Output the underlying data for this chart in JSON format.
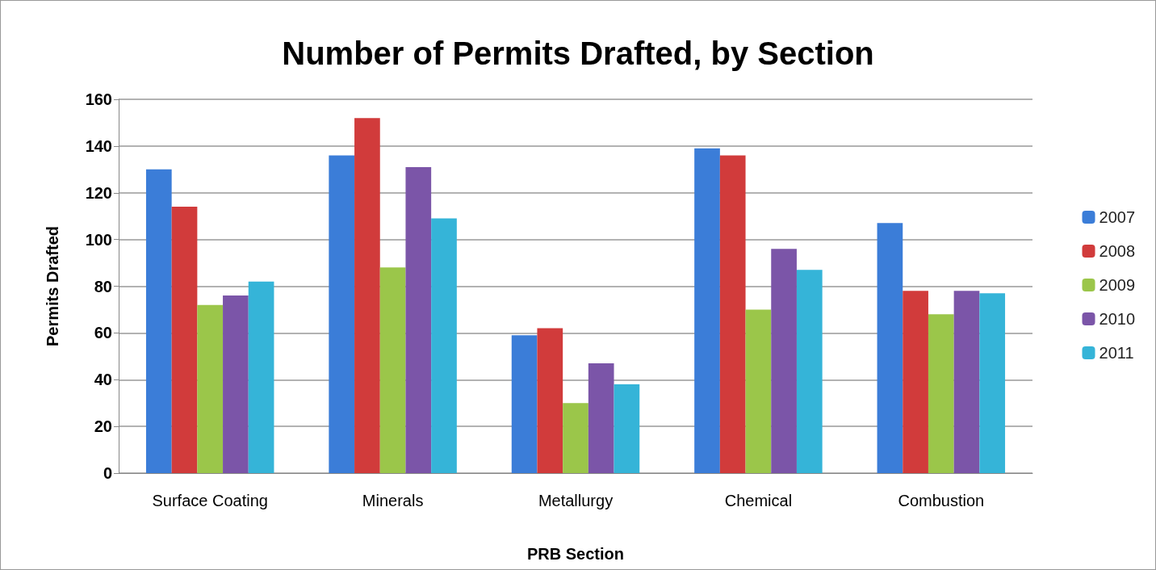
{
  "chart_data": {
    "type": "bar",
    "title": "Number of Permits Drafted, by Section",
    "xlabel": "PRB Section",
    "ylabel": "Permits Drafted",
    "categories": [
      "Surface Coating",
      "Minerals",
      "Metallurgy",
      "Chemical",
      "Combustion"
    ],
    "series": [
      {
        "name": "2007",
        "color": "#3b7dd8",
        "values": [
          130,
          136,
          59,
          139,
          107
        ]
      },
      {
        "name": "2008",
        "color": "#d13b3b",
        "values": [
          114,
          152,
          62,
          136,
          78
        ]
      },
      {
        "name": "2009",
        "color": "#9bc64a",
        "values": [
          72,
          88,
          30,
          70,
          68
        ]
      },
      {
        "name": "2010",
        "color": "#7b55a8",
        "values": [
          76,
          131,
          47,
          96,
          78
        ]
      },
      {
        "name": "2011",
        "color": "#35b4d8",
        "values": [
          82,
          109,
          38,
          87,
          77
        ]
      }
    ],
    "ylim": [
      0,
      160
    ],
    "yticks": [
      0,
      20,
      40,
      60,
      80,
      100,
      120,
      140,
      160
    ],
    "grid": "y",
    "legend": "right"
  }
}
